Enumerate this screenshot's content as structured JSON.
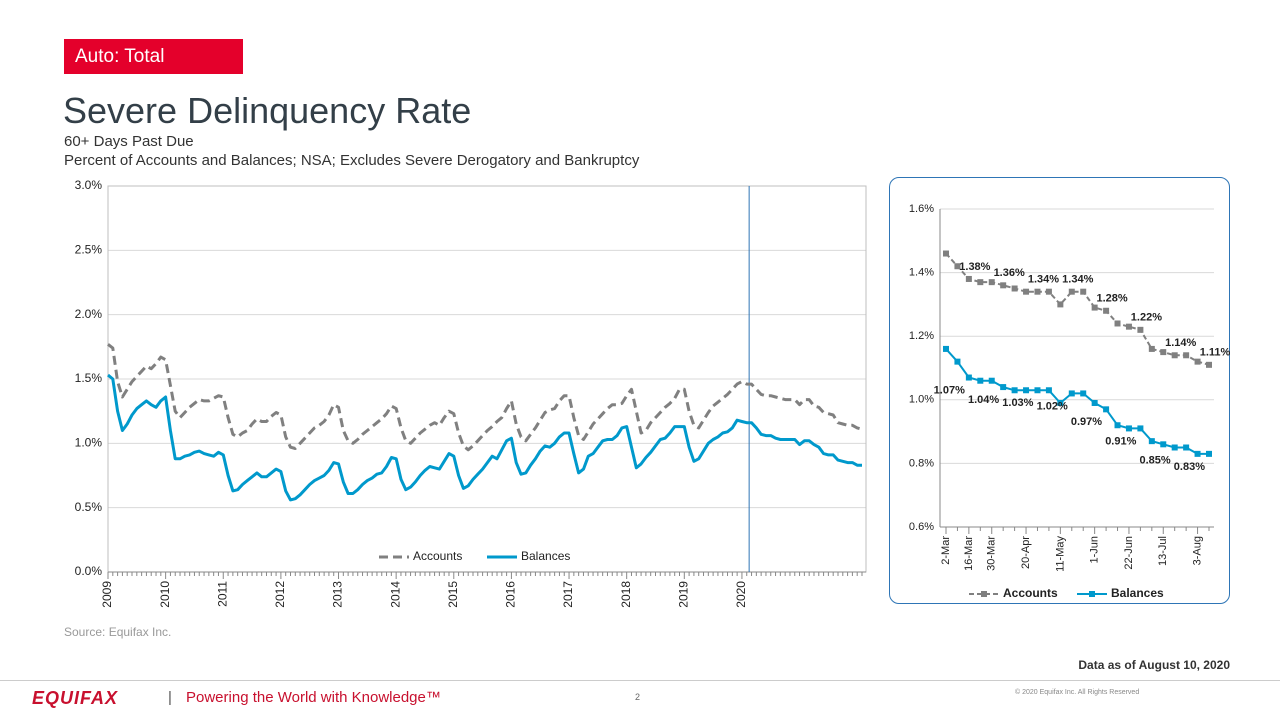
{
  "slide": {
    "tag": "Auto: Total",
    "title": "Severe Delinquency Rate",
    "subtitle": [
      "60+ Days Past Due",
      "Percent of Accounts and Balances; NSA; Excludes Severe Derogatory and Bankruptcy"
    ],
    "source": "Source: Equifax Inc.",
    "data_note": "Data as of August 10, 2020"
  },
  "footer": {
    "logo": "EQUIFAX",
    "separator": "|",
    "tagline": "Powering the World with Knowledge™",
    "page": "2",
    "copyright": "© 2020  Equifax  Inc. All Rights Reserved"
  },
  "chart_data": [
    {
      "type": "line",
      "legend": "lower center",
      "grid": true,
      "categories": [
        "2009",
        null,
        null,
        null,
        null,
        null,
        null,
        null,
        null,
        null,
        null,
        null,
        "2010",
        null,
        null,
        null,
        null,
        null,
        null,
        null,
        null,
        null,
        null,
        null,
        "2011",
        null,
        null,
        null,
        null,
        null,
        null,
        null,
        null,
        null,
        null,
        null,
        "2012",
        null,
        null,
        null,
        null,
        null,
        null,
        null,
        null,
        null,
        null,
        null,
        "2013",
        null,
        null,
        null,
        null,
        null,
        null,
        null,
        null,
        null,
        null,
        null,
        "2014",
        null,
        null,
        null,
        null,
        null,
        null,
        null,
        null,
        null,
        null,
        null,
        "2015",
        null,
        null,
        null,
        null,
        null,
        null,
        null,
        null,
        null,
        null,
        null,
        "2016",
        null,
        null,
        null,
        null,
        null,
        null,
        null,
        null,
        null,
        null,
        null,
        "2017",
        null,
        null,
        null,
        null,
        null,
        null,
        null,
        null,
        null,
        null,
        null,
        "2018",
        null,
        null,
        null,
        null,
        null,
        null,
        null,
        null,
        null,
        null,
        null,
        "2019",
        null,
        null,
        null,
        null,
        null,
        null,
        null,
        null,
        null,
        null,
        null,
        "2020",
        null,
        null,
        null,
        null,
        null,
        null,
        null,
        null,
        null,
        null,
        null,
        null,
        null,
        null,
        null,
        null,
        null,
        null,
        null,
        null,
        null,
        null,
        null,
        null,
        null
      ],
      "ylim": [
        0,
        3
      ],
      "yticks": [
        {
          "value": 0,
          "label": "0.0%"
        },
        {
          "value": 0.5,
          "label": "0.5%"
        },
        {
          "value": 1,
          "label": "1.0%"
        },
        {
          "value": 1.5,
          "label": "1.5%"
        },
        {
          "value": 2,
          "label": "2.0%"
        },
        {
          "value": 2.5,
          "label": "2.5%"
        },
        {
          "value": 3,
          "label": "3.0%"
        }
      ],
      "series": [
        {
          "name": "Accounts",
          "color": "#808080",
          "style": "dashed",
          "values": [
            1.77,
            1.74,
            1.48,
            1.36,
            1.42,
            1.48,
            1.52,
            1.56,
            1.6,
            1.58,
            1.62,
            1.67,
            1.65,
            1.45,
            1.25,
            1.2,
            1.24,
            1.28,
            1.31,
            1.34,
            1.33,
            1.33,
            1.35,
            1.37,
            1.36,
            1.2,
            1.07,
            1.05,
            1.08,
            1.1,
            1.15,
            1.19,
            1.17,
            1.17,
            1.21,
            1.24,
            1.22,
            1.05,
            0.97,
            0.96,
            1.0,
            1.04,
            1.08,
            1.12,
            1.14,
            1.17,
            1.22,
            1.3,
            1.28,
            1.1,
            1.02,
            1.0,
            1.03,
            1.07,
            1.1,
            1.13,
            1.16,
            1.19,
            1.23,
            1.29,
            1.27,
            1.12,
            1.02,
            1.0,
            1.04,
            1.08,
            1.11,
            1.14,
            1.16,
            1.14,
            1.2,
            1.25,
            1.23,
            1.08,
            0.98,
            0.95,
            0.98,
            1.02,
            1.06,
            1.1,
            1.13,
            1.17,
            1.2,
            1.27,
            1.33,
            1.15,
            1.05,
            1.02,
            1.07,
            1.12,
            1.18,
            1.24,
            1.26,
            1.27,
            1.33,
            1.37,
            1.37,
            1.2,
            1.06,
            1.03,
            1.09,
            1.15,
            1.19,
            1.23,
            1.27,
            1.3,
            1.3,
            1.31,
            1.37,
            1.42,
            1.25,
            1.08,
            1.1,
            1.16,
            1.2,
            1.24,
            1.28,
            1.31,
            1.35,
            1.42,
            1.42,
            1.25,
            1.14,
            1.12,
            1.18,
            1.24,
            1.29,
            1.32,
            1.35,
            1.38,
            1.42,
            1.46,
            1.48,
            1.46,
            1.46,
            1.42,
            1.38,
            1.37,
            1.37,
            1.36,
            1.35,
            1.34,
            1.34,
            1.34,
            1.3,
            1.34,
            1.34,
            1.29,
            1.28,
            1.24,
            1.23,
            1.22,
            1.16,
            1.15,
            1.14,
            1.14,
            1.12,
            1.11
          ]
        },
        {
          "name": "Balances",
          "color": "#0099cc",
          "style": "solid",
          "values": [
            1.53,
            1.5,
            1.25,
            1.1,
            1.15,
            1.22,
            1.27,
            1.3,
            1.33,
            1.3,
            1.28,
            1.33,
            1.36,
            1.1,
            0.88,
            0.88,
            0.9,
            0.91,
            0.93,
            0.94,
            0.92,
            0.91,
            0.9,
            0.93,
            0.91,
            0.75,
            0.63,
            0.64,
            0.68,
            0.71,
            0.74,
            0.77,
            0.74,
            0.74,
            0.77,
            0.8,
            0.78,
            0.63,
            0.56,
            0.57,
            0.6,
            0.64,
            0.68,
            0.71,
            0.73,
            0.75,
            0.79,
            0.85,
            0.84,
            0.7,
            0.61,
            0.61,
            0.64,
            0.68,
            0.71,
            0.73,
            0.76,
            0.77,
            0.82,
            0.89,
            0.88,
            0.72,
            0.64,
            0.66,
            0.7,
            0.75,
            0.79,
            0.82,
            0.81,
            0.8,
            0.86,
            0.92,
            0.9,
            0.75,
            0.65,
            0.67,
            0.72,
            0.76,
            0.8,
            0.85,
            0.9,
            0.88,
            0.95,
            1.02,
            1.04,
            0.85,
            0.76,
            0.77,
            0.83,
            0.88,
            0.94,
            0.98,
            0.97,
            1.0,
            1.05,
            1.08,
            1.08,
            0.92,
            0.77,
            0.8,
            0.9,
            0.92,
            0.97,
            1.02,
            1.03,
            1.03,
            1.06,
            1.12,
            1.13,
            0.97,
            0.81,
            0.84,
            0.89,
            0.93,
            0.98,
            1.03,
            1.04,
            1.08,
            1.13,
            1.13,
            1.13,
            0.97,
            0.86,
            0.88,
            0.94,
            1.0,
            1.03,
            1.05,
            1.08,
            1.09,
            1.12,
            1.18,
            1.17,
            1.16,
            1.16,
            1.12,
            1.07,
            1.06,
            1.06,
            1.04,
            1.03,
            1.03,
            1.03,
            1.03,
            0.99,
            1.02,
            1.02,
            0.99,
            0.97,
            0.92,
            0.91,
            0.91,
            0.87,
            0.86,
            0.85,
            0.85,
            0.83,
            0.83
          ]
        }
      ]
    },
    {
      "type": "line",
      "legend": "below",
      "grid": true,
      "marker": "square",
      "categories": [
        "2-Mar",
        null,
        "16-Mar",
        null,
        "30-Mar",
        null,
        null,
        "20-Apr",
        null,
        null,
        "11-May",
        null,
        null,
        "1-Jun",
        null,
        null,
        "22-Jun",
        null,
        null,
        "13-Jul",
        null,
        null,
        "3-Aug",
        null
      ],
      "ylim": [
        0.6,
        1.6
      ],
      "yticks": [
        {
          "value": 0.6,
          "label": "0.6%"
        },
        {
          "value": 0.8,
          "label": "0.8%"
        },
        {
          "value": 1.0,
          "label": "1.0%"
        },
        {
          "value": 1.2,
          "label": "1.2%"
        },
        {
          "value": 1.4,
          "label": "1.4%"
        },
        {
          "value": 1.6,
          "label": "1.6%"
        }
      ],
      "series": [
        {
          "name": "Accounts",
          "color": "#808080",
          "style": "dashed",
          "values": [
            1.46,
            1.42,
            1.38,
            1.37,
            1.37,
            1.36,
            1.35,
            1.34,
            1.34,
            1.34,
            1.3,
            1.34,
            1.34,
            1.29,
            1.28,
            1.24,
            1.23,
            1.22,
            1.16,
            1.15,
            1.14,
            1.14,
            1.12,
            1.11
          ],
          "value_labels": [
            null,
            null,
            "1.38%",
            null,
            null,
            "1.36%",
            null,
            null,
            "1.34%",
            null,
            null,
            "1.34%",
            null,
            null,
            "1.28%",
            null,
            null,
            "1.22%",
            null,
            null,
            "1.14%",
            null,
            null,
            "1.11%"
          ]
        },
        {
          "name": "Balances",
          "color": "#0099cc",
          "style": "solid",
          "values": [
            1.16,
            1.12,
            1.07,
            1.06,
            1.06,
            1.04,
            1.03,
            1.03,
            1.03,
            1.03,
            0.99,
            1.02,
            1.02,
            0.99,
            0.97,
            0.92,
            0.91,
            0.91,
            0.87,
            0.86,
            0.85,
            0.85,
            0.83,
            0.83
          ],
          "value_labels": [
            null,
            null,
            "1.07%",
            null,
            null,
            "1.04%",
            null,
            null,
            "1.03%",
            null,
            null,
            "1.02%",
            null,
            null,
            "0.97%",
            null,
            null,
            "0.91%",
            null,
            null,
            "0.85%",
            null,
            null,
            "0.83%"
          ]
        }
      ]
    }
  ]
}
